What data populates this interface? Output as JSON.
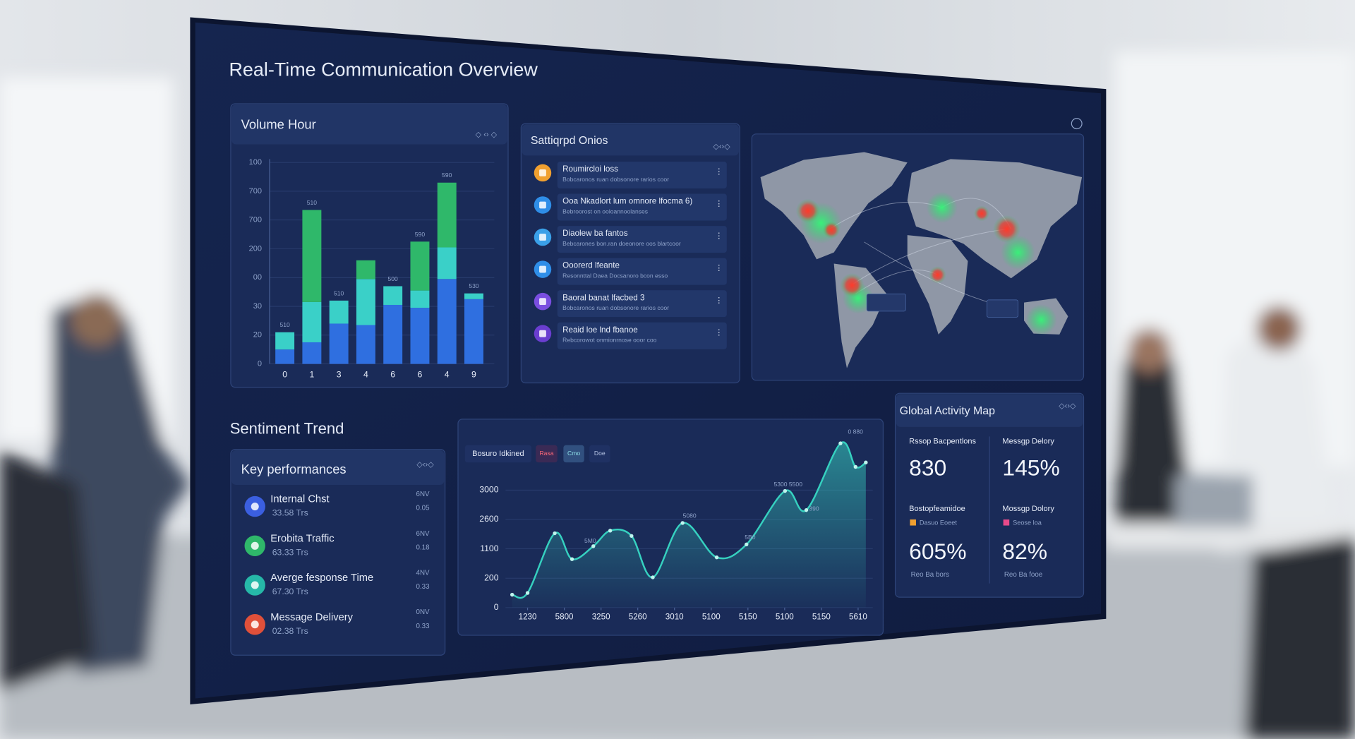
{
  "header": {
    "title": "Real-Time Communication Overview"
  },
  "volume": {
    "type": "bar",
    "title": "Volume Hour",
    "categories": [
      "0",
      "1",
      "3",
      "4",
      "6",
      "6",
      "4",
      "9"
    ],
    "ylim": [
      0,
      7
    ],
    "yticks": [
      0,
      {
        "value": 1,
        "label": "20"
      },
      {
        "value": 2,
        "label": "30"
      },
      {
        "value": 3,
        "label": "00"
      },
      {
        "value": 4,
        "label": "200"
      },
      {
        "value": 5,
        "label": "700"
      },
      {
        "value": 6,
        "label": "700"
      },
      {
        "value": 7,
        "label": "100"
      }
    ],
    "grid": true,
    "series": [
      {
        "color": "#2f6fe0",
        "values": [
          0.5,
          0.75,
          1.4,
          1.35,
          2.05,
          1.95,
          2.95,
          2.25
        ]
      },
      {
        "color": "#3ad0c8",
        "values": [
          0.6,
          1.4,
          0.8,
          1.6,
          0.65,
          0.6,
          1.1,
          0.2
        ]
      },
      {
        "color": "#2fb86a",
        "values": [
          0,
          3.2,
          0,
          0.65,
          0,
          1.7,
          2.25,
          0
        ]
      }
    ],
    "top_labels": [
      "510",
      "510",
      "510",
      null,
      "500",
      "590",
      "590",
      "530"
    ]
  },
  "feed": {
    "title": "Sattiqrpd Onios",
    "items": [
      {
        "title": "Roumircloi loss",
        "text": "Bobcaronos ruan dobsonore rarios coor",
        "color": "#f0a030"
      },
      {
        "title": "Ooa Nkadlort lum omnore lfocma 6)",
        "text": "Bebroorost on ooloannoolanses",
        "color": "#2f8ee8"
      },
      {
        "title": "Diaolew ba fantos",
        "text": "Bebcarones bon.ran doeonore oos blartcoor",
        "color": "#3aa0e8"
      },
      {
        "title": "Ooorerd lfeante",
        "text": "Resonnttal Daea Docsanoro bcon esso",
        "color": "#2f8ee8"
      },
      {
        "title": "Baoral banat lfacbed 3",
        "text": "Bobcaronos ruan dobsonore rarios coor",
        "color": "#7a4ee0"
      },
      {
        "title": "Reaid loe lnd fbanoe",
        "text": "Rebcorowot onmionrnose ooor coo",
        "color": "#6a3ed0"
      }
    ]
  },
  "sentiment": {
    "type": "line",
    "title": "Sentiment Trend",
    "legend": [
      "Bosuro Idkined",
      "Rasa",
      "Cmo",
      "Doe"
    ],
    "color": "#36d1c0",
    "xlim": [
      -0.6,
      9.4
    ],
    "ylim": [
      0,
      6
    ],
    "x": [
      -0.42,
      0,
      0.74,
      1.21,
      1.79,
      2.25,
      2.83,
      3.41,
      4.22,
      5.15,
      5.96,
      7.01,
      7.59,
      8.52,
      8.93,
      9.21
    ],
    "values": [
      0.44,
      0.5,
      2.53,
      1.65,
      2.09,
      2.62,
      2.44,
      1.03,
      2.88,
      1.71,
      2.15,
      3.97,
      3.32,
      5.59,
      4.79,
      4.94
    ],
    "xticks": [
      {
        "value": 0,
        "label": "1230"
      },
      {
        "value": 1,
        "label": "5800"
      },
      {
        "value": 2,
        "label": "3250"
      },
      {
        "value": 3,
        "label": "5260"
      },
      {
        "value": 4,
        "label": "3010"
      },
      {
        "value": 5,
        "label": "5100"
      },
      {
        "value": 6,
        "label": "5150"
      },
      {
        "value": 7,
        "label": "5100"
      },
      {
        "value": 8,
        "label": "5150"
      },
      {
        "value": 9,
        "label": "5610"
      }
    ],
    "yticks": [
      0,
      {
        "value": 1,
        "label": "200"
      },
      {
        "value": 2,
        "label": "1100"
      },
      {
        "value": 3,
        "label": "2600"
      },
      {
        "value": 4,
        "label": "3000"
      }
    ],
    "annotations": [
      "5M0",
      "5080",
      "5B0",
      "5300 5500",
      "390",
      "0 880"
    ]
  },
  "key": {
    "title": "Key performances",
    "items": [
      {
        "name": "Internal Chst",
        "sub": "33.58 Trs",
        "r1": "6NV",
        "r2": "0.05",
        "color": "#3b5fe0"
      },
      {
        "name": "Erobita Traffic",
        "sub": "63.33 Trs",
        "r1": "6NV",
        "r2": "0.18",
        "color": "#2fb86a"
      },
      {
        "name": "Averge fesponse Time",
        "sub": "67.30 Trs",
        "r1": "4NV",
        "r2": "0.33",
        "color": "#26b8a8"
      },
      {
        "name": "Message Delivery",
        "sub": "02.38 Trs",
        "r1": "0NV",
        "r2": "0.33",
        "color": "#e0503a"
      }
    ]
  },
  "activity": {
    "title": "Global Activity Map",
    "stats": [
      {
        "label": "Rssop Bacpentlons",
        "value": "830"
      },
      {
        "label": "Messgp Delory",
        "value": "145%"
      },
      {
        "label": "Bostopfeamidoe",
        "key": "Dasuo Eoeet",
        "key_color": "#f0a030",
        "value": "605%",
        "note": "Reo Ba bors"
      },
      {
        "label": "Mossgp Dolory",
        "key": "Seose loa",
        "key_color": "#e84a8a",
        "value": "82%",
        "note": "Reo Ba fooe"
      }
    ]
  }
}
